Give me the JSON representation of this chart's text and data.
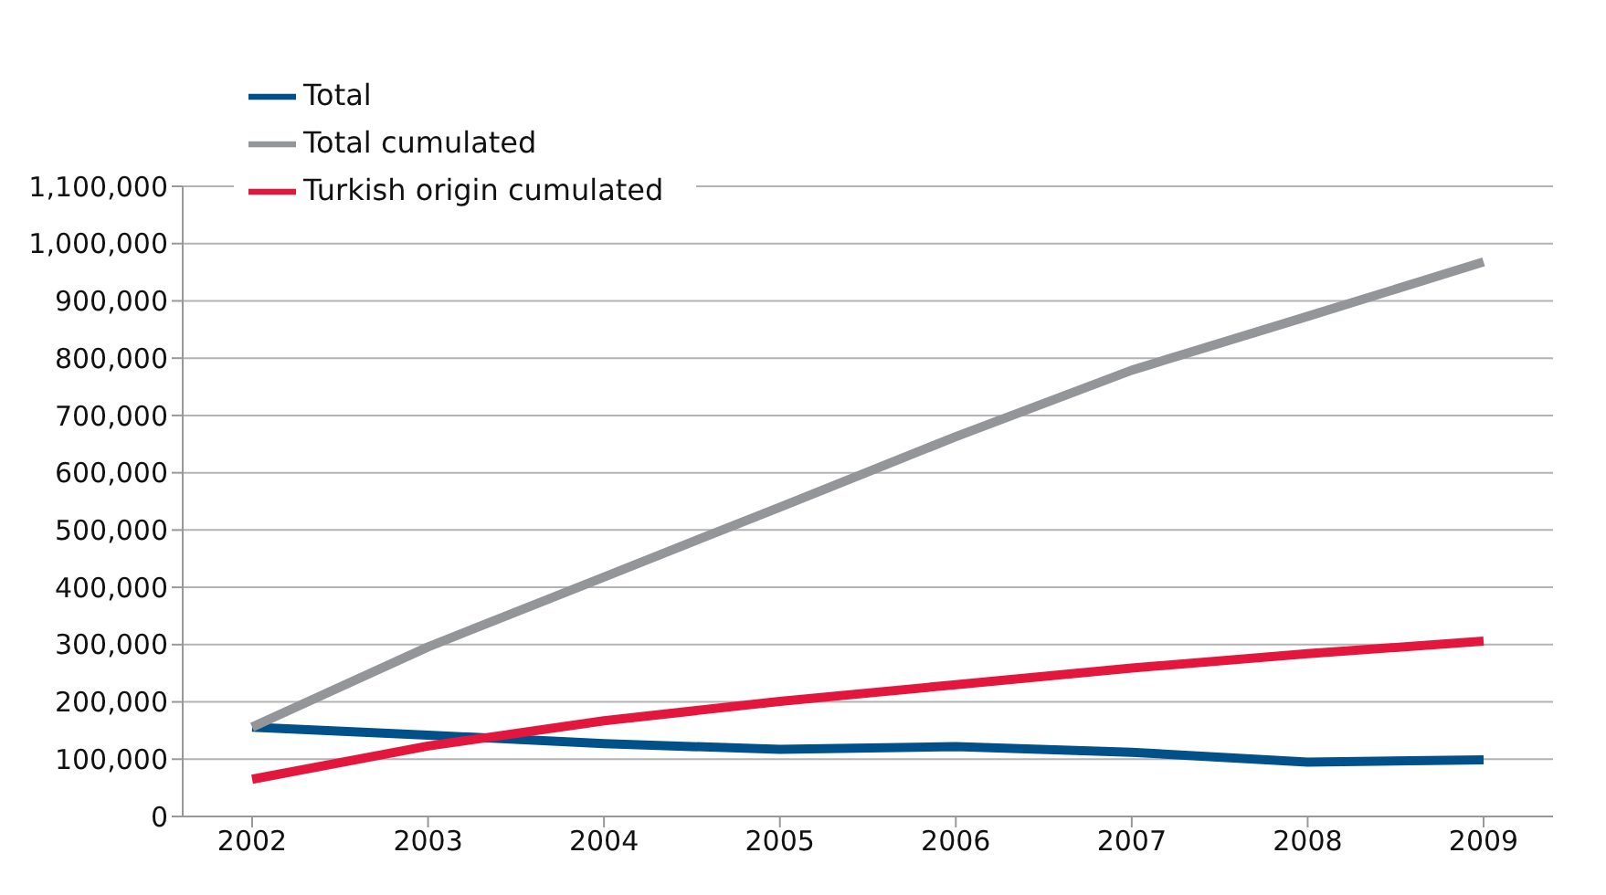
{
  "chart_data": {
    "type": "line",
    "categories": [
      "2002",
      "2003",
      "2004",
      "2005",
      "2006",
      "2007",
      "2008",
      "2009"
    ],
    "series": [
      {
        "name": "Total",
        "color": "#00508a",
        "values": [
          156000,
          142000,
          127000,
          117000,
          122000,
          112000,
          95000,
          99000
        ]
      },
      {
        "name": "Total cumulated",
        "color": "#949599",
        "values": [
          156000,
          296000,
          418000,
          540000,
          663000,
          779000,
          873000,
          968000
        ]
      },
      {
        "name": "Turkish origin cumulated",
        "color": "#e3173e",
        "values": [
          65000,
          123000,
          167000,
          201000,
          230000,
          259000,
          284000,
          306000
        ]
      }
    ],
    "ylim": [
      0,
      1100000
    ],
    "yticks": [
      {
        "value": 0,
        "label": "0"
      },
      {
        "value": 100000,
        "label": "100,000"
      },
      {
        "value": 200000,
        "label": "200,000"
      },
      {
        "value": 300000,
        "label": "300,000"
      },
      {
        "value": 400000,
        "label": "400,000"
      },
      {
        "value": 500000,
        "label": "500,000"
      },
      {
        "value": 600000,
        "label": "600,000"
      },
      {
        "value": 700000,
        "label": "700,000"
      },
      {
        "value": 800000,
        "label": "800,000"
      },
      {
        "value": 900000,
        "label": "900,000"
      },
      {
        "value": 1000000,
        "label": "1,000,000"
      },
      {
        "value": 1100000,
        "label": "1,100,000"
      }
    ],
    "grid": "y",
    "legend": "top left",
    "marker": "none",
    "line_style": "solid"
  }
}
